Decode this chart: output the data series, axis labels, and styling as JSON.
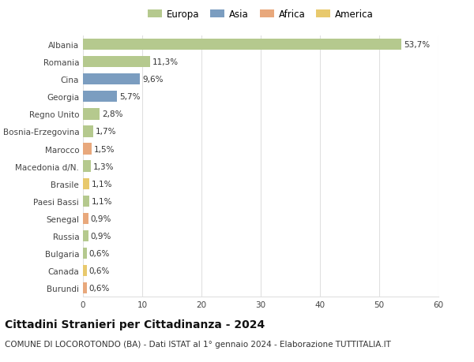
{
  "categories": [
    "Albania",
    "Romania",
    "Cina",
    "Georgia",
    "Regno Unito",
    "Bosnia-Erzegovina",
    "Marocco",
    "Macedonia d/N.",
    "Brasile",
    "Paesi Bassi",
    "Senegal",
    "Russia",
    "Bulgaria",
    "Canada",
    "Burundi"
  ],
  "values": [
    53.7,
    11.3,
    9.6,
    5.7,
    2.8,
    1.7,
    1.5,
    1.3,
    1.1,
    1.1,
    0.9,
    0.9,
    0.6,
    0.6,
    0.6
  ],
  "labels": [
    "53,7%",
    "11,3%",
    "9,6%",
    "5,7%",
    "2,8%",
    "1,7%",
    "1,5%",
    "1,3%",
    "1,1%",
    "1,1%",
    "0,9%",
    "0,9%",
    "0,6%",
    "0,6%",
    "0,6%"
  ],
  "continents": [
    "Europa",
    "Europa",
    "Asia",
    "Asia",
    "Europa",
    "Europa",
    "Africa",
    "Europa",
    "America",
    "Europa",
    "Africa",
    "Europa",
    "Europa",
    "America",
    "Africa"
  ],
  "colors": {
    "Europa": "#b5c98e",
    "Asia": "#7b9dc0",
    "Africa": "#e8a87c",
    "America": "#e8c96d"
  },
  "xlim": [
    0,
    60
  ],
  "xticks": [
    0,
    10,
    20,
    30,
    40,
    50,
    60
  ],
  "title": "Cittadini Stranieri per Cittadinanza - 2024",
  "subtitle": "COMUNE DI LOCOROTONDO (BA) - Dati ISTAT al 1° gennaio 2024 - Elaborazione TUTTITALIA.IT",
  "background_color": "#ffffff",
  "grid_color": "#e0e0e0",
  "bar_height": 0.65,
  "title_fontsize": 10,
  "subtitle_fontsize": 7.5,
  "label_fontsize": 7.5,
  "tick_fontsize": 7.5,
  "legend_fontsize": 8.5
}
